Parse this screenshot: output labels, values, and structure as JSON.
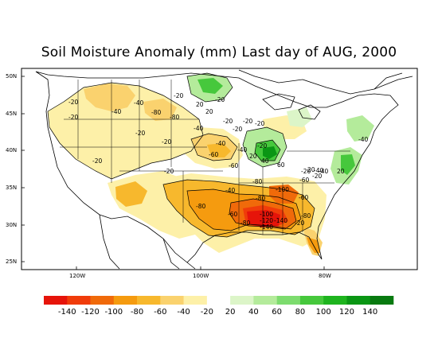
{
  "title": "Soil Moisture Anomaly (mm) Last day of AUG, 2000",
  "map": {
    "lat_ticks": [
      "50N",
      "45N",
      "40N",
      "35N",
      "30N",
      "25N"
    ],
    "lon_ticks": [
      "120W",
      "100W",
      "80W"
    ],
    "contour_labels": [
      "-20",
      "-20",
      "-40",
      "-40",
      "-80",
      "-80",
      "-20",
      "20",
      "20",
      "-20",
      "-40",
      "-20",
      "-20",
      "-20",
      "-40",
      "-60",
      "-20",
      "-60",
      "-20",
      "-40",
      "-20",
      "-20",
      "20",
      "40",
      "-20",
      "-20",
      "60",
      "-20",
      "20",
      "-40",
      "-80",
      "-40",
      "-100",
      "-60",
      "-80",
      "-20",
      "-40",
      "20",
      "-80",
      "-60",
      "-60",
      "-100",
      "-120",
      "-140",
      "-140",
      "-80",
      "-80",
      "-20",
      "-40"
    ]
  },
  "colorbar": {
    "labels": [
      "-140",
      "-120",
      "-100",
      "-80",
      "-60",
      "-40",
      "-20",
      "20",
      "40",
      "60",
      "80",
      "100",
      "120",
      "140"
    ],
    "colors": [
      "#e6140a",
      "#f03c0a",
      "#f06a0a",
      "#f59b0f",
      "#f7b82d",
      "#fad26e",
      "#fdf0a8",
      "#ffffff",
      "#dcf5c8",
      "#b4eb9b",
      "#7ddc6e",
      "#46c83c",
      "#1eb41e",
      "#0a9614",
      "#087a10"
    ]
  }
}
